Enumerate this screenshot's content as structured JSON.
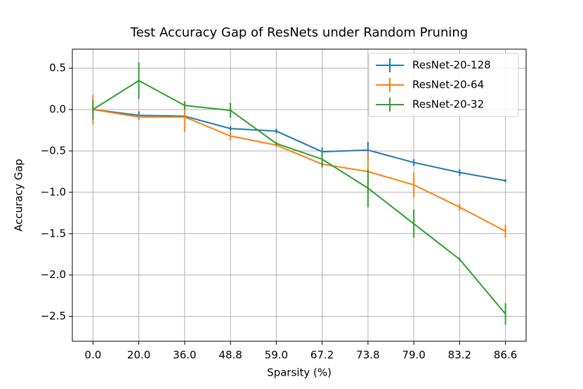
{
  "chart_data": {
    "type": "line",
    "title": "Test Accuracy Gap of ResNets under Random Pruning",
    "xlabel": "Sparsity (%)",
    "ylabel": "Accuracy Gap",
    "categories": [
      "0.0",
      "20.0",
      "36.0",
      "48.8",
      "59.0",
      "67.2",
      "73.8",
      "79.0",
      "83.2",
      "86.6"
    ],
    "series": [
      {
        "name": "ResNet-20-128",
        "color": "#1f77b4",
        "values": [
          0,
          -0.07,
          -0.08,
          -0.23,
          -0.26,
          -0.51,
          -0.49,
          -0.64,
          -0.76,
          -0.86
        ],
        "errors": [
          0.05,
          0.05,
          0.02,
          0.03,
          0.03,
          0.05,
          0.1,
          0.04,
          0.04,
          0.02
        ]
      },
      {
        "name": "ResNet-20-64",
        "color": "#ff7f0e",
        "values": [
          0,
          -0.09,
          -0.09,
          -0.32,
          -0.43,
          -0.66,
          -0.75,
          -0.91,
          -1.18,
          -1.47
        ],
        "errors": [
          0.18,
          0.02,
          0.18,
          0.05,
          0.02,
          0.03,
          0.25,
          0.15,
          0.04,
          0.08
        ]
      },
      {
        "name": "ResNet-20-32",
        "color": "#2ca02c",
        "values": [
          0,
          0.35,
          0.05,
          -0.01,
          -0.41,
          -0.6,
          -0.95,
          -1.38,
          -1.81,
          -2.47
        ],
        "errors": [
          0.12,
          0.22,
          0.05,
          0.09,
          0.02,
          0.1,
          0.23,
          0.17,
          0.02,
          0.13
        ]
      }
    ],
    "ylim": [
      -2.8,
      0.73
    ],
    "yticks": [
      0.5,
      {
        "value": 0,
        "label": "0.0"
      },
      {
        "value": -0.5,
        "label": "−0.5"
      },
      {
        "value": -1,
        "label": "−1.0"
      },
      {
        "value": -1.5,
        "label": "−1.5"
      },
      {
        "value": -2,
        "label": "−2.0"
      },
      {
        "value": -2.5,
        "label": "−2.5"
      }
    ],
    "grid": true,
    "legend": "upper right"
  }
}
